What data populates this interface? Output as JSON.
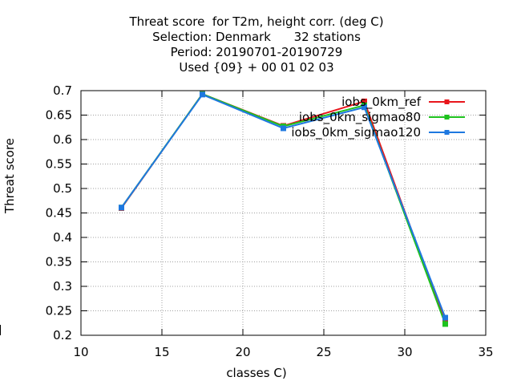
{
  "title_lines": [
    "Threat score  for T2m, height corr. (deg C)",
    "Selection: Denmark      32 stations",
    "Period: 20190701-20190729",
    "Used {09} + 00 01 02 03"
  ],
  "chart_data": {
    "type": "line",
    "xlabel": "classes C)",
    "ylabel": "Threat score",
    "xlim": [
      10,
      35
    ],
    "ylim": [
      0.2,
      0.7
    ],
    "xticks": [
      10,
      15,
      20,
      25,
      30,
      35
    ],
    "yticks": [
      0.2,
      0.25,
      0.3,
      0.35,
      0.4,
      0.45,
      0.5,
      0.55,
      0.6,
      0.65,
      0.7
    ],
    "grid": true,
    "legend_position": "top-right",
    "x": [
      12.5,
      17.5,
      22.5,
      27.5,
      32.5
    ],
    "series": [
      {
        "name": "iobs_0km_ref",
        "color": "#e8161c",
        "values": [
          0.46,
          0.693,
          0.628,
          0.678,
          0.227
        ]
      },
      {
        "name": "iobs_0km_sigmao80",
        "color": "#1ec21e",
        "values": [
          0.461,
          0.693,
          0.627,
          0.67,
          0.223
        ]
      },
      {
        "name": "iobs_0km_sigmao120",
        "color": "#1e78e0",
        "values": [
          0.461,
          0.692,
          0.623,
          0.666,
          0.236
        ]
      }
    ]
  }
}
